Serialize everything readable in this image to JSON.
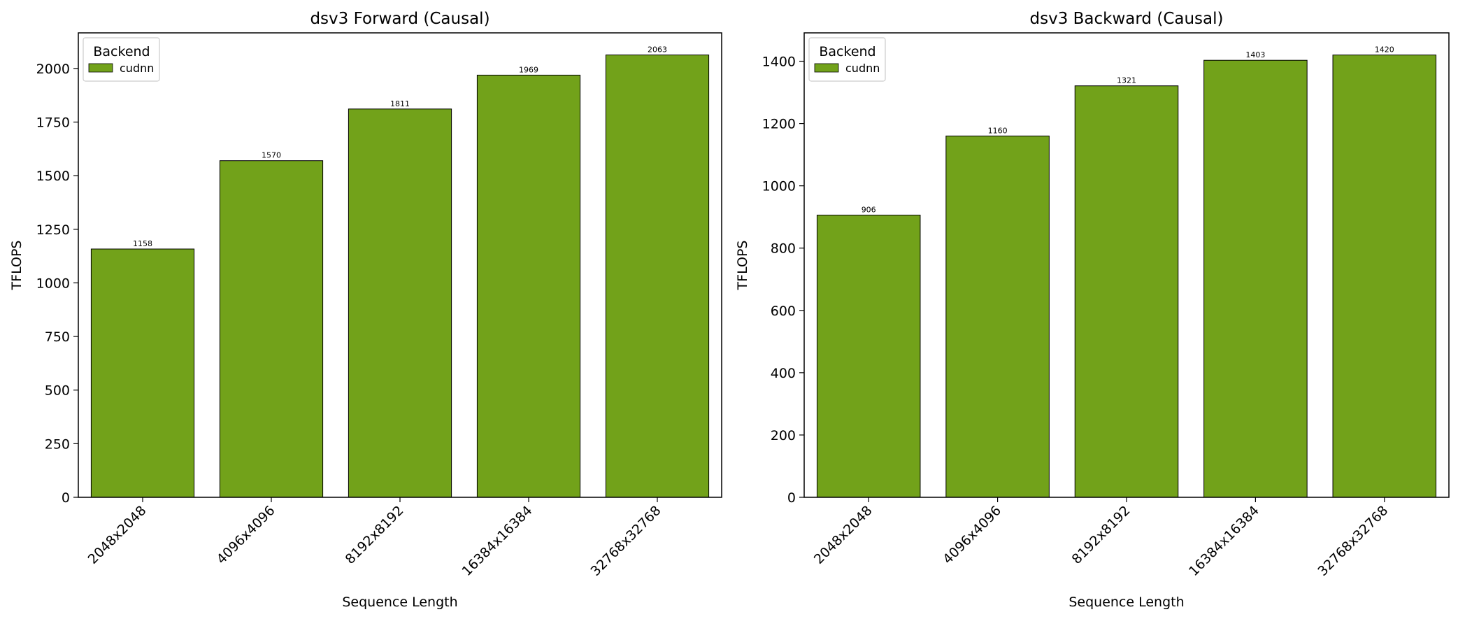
{
  "chart_data": [
    {
      "type": "bar",
      "title": "dsv3 Forward (Causal)",
      "xlabel": "Sequence Length",
      "ylabel": "TFLOPS",
      "categories": [
        "2048x2048",
        "4096x4096",
        "8192x8192",
        "16384x16384",
        "32768x32768"
      ],
      "series": [
        {
          "name": "cudnn",
          "values": [
            1158,
            1570,
            1811,
            1969,
            2063
          ]
        }
      ],
      "value_labels": [
        "1158",
        "1570",
        "1811",
        "1969",
        "2063"
      ],
      "ylim": [
        0,
        2166
      ],
      "yticks": [
        0,
        250,
        500,
        750,
        1000,
        1250,
        1500,
        1750,
        2000
      ],
      "legend_title": "Backend",
      "legend_position": "top-left",
      "grid": false
    },
    {
      "type": "bar",
      "title": "dsv3 Backward (Causal)",
      "xlabel": "Sequence Length",
      "ylabel": "TFLOPS",
      "categories": [
        "2048x2048",
        "4096x4096",
        "8192x8192",
        "16384x16384",
        "32768x32768"
      ],
      "series": [
        {
          "name": "cudnn",
          "values": [
            906,
            1160,
            1321,
            1403,
            1420
          ]
        }
      ],
      "value_labels": [
        "906",
        "1160",
        "1321",
        "1403",
        "1420"
      ],
      "ylim": [
        0,
        1491
      ],
      "yticks": [
        0,
        200,
        400,
        600,
        800,
        1000,
        1200,
        1400
      ],
      "legend_title": "Backend",
      "legend_position": "top-left",
      "grid": false
    }
  ],
  "colors": {
    "bar": "#72a21a",
    "edge": "#000000"
  }
}
